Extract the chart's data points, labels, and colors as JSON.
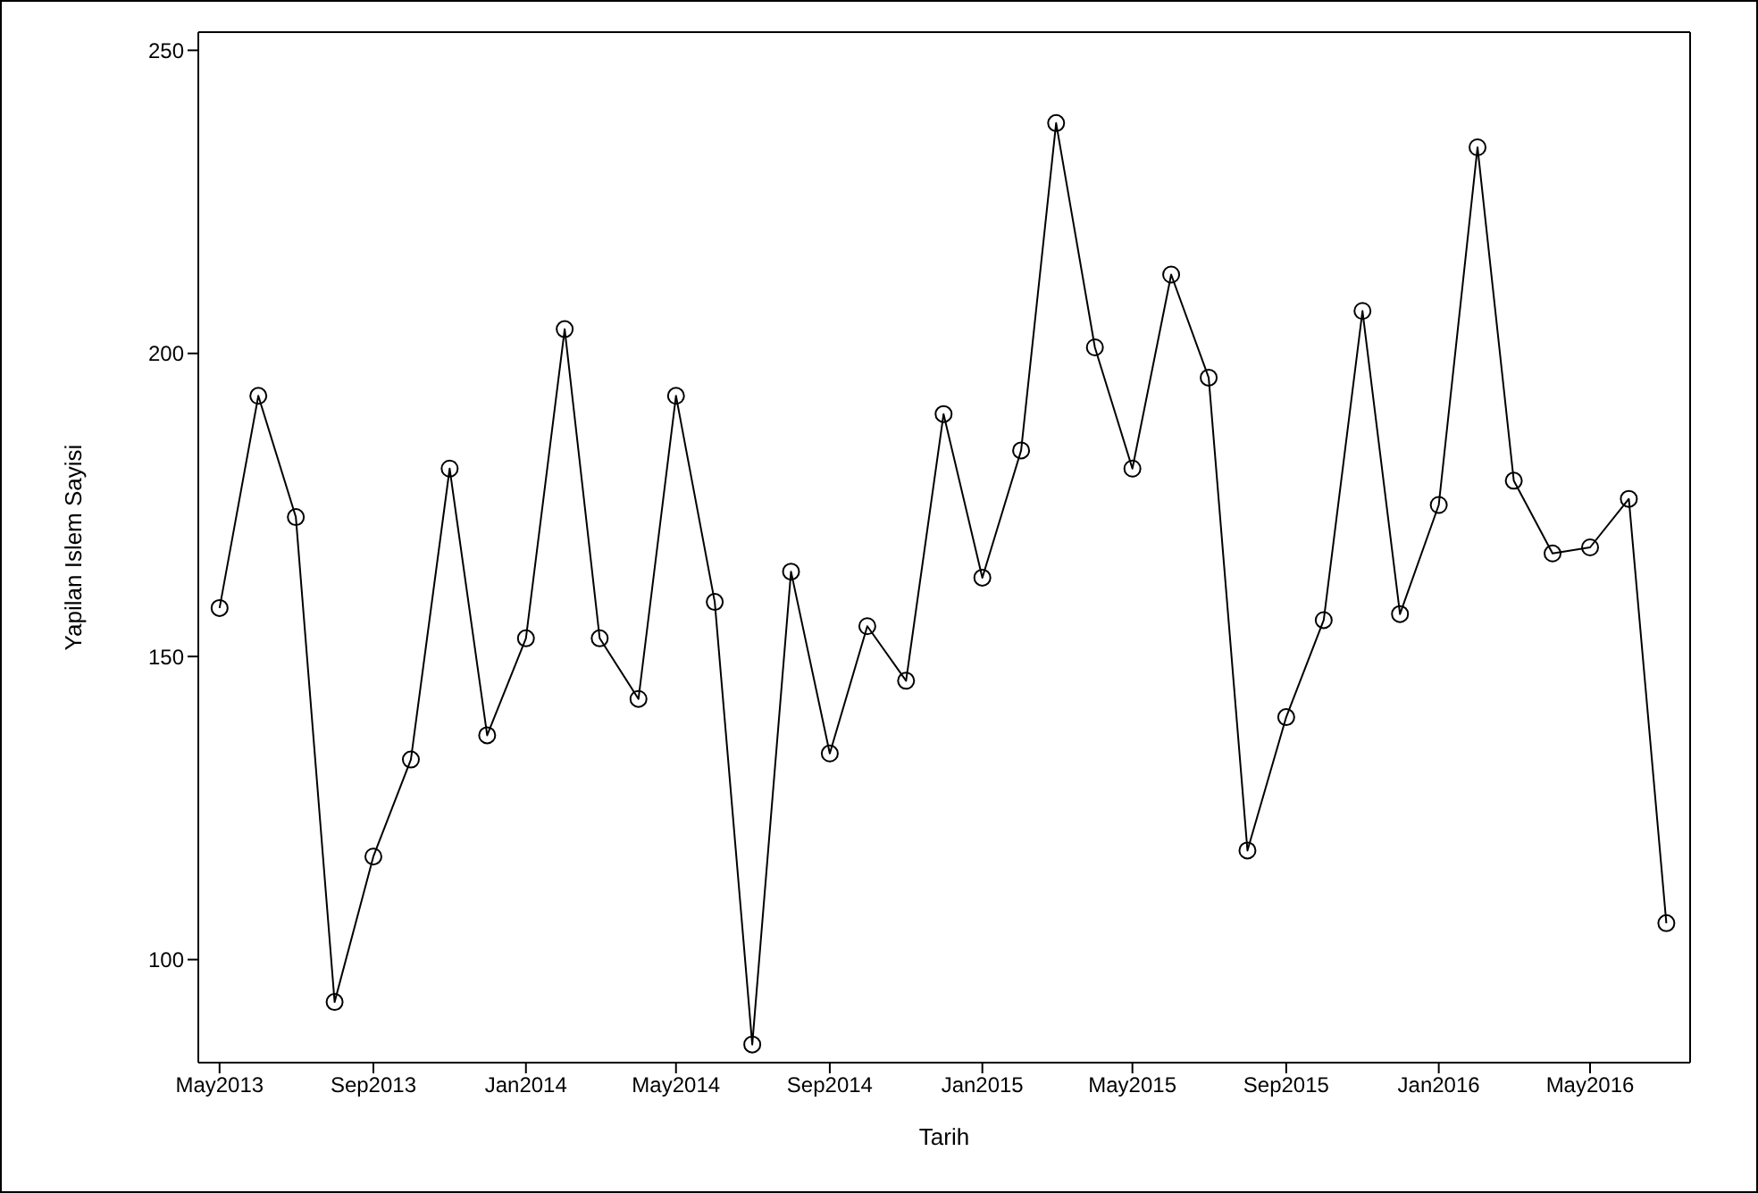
{
  "chart_data": {
    "type": "line",
    "xlabel": "Tarih",
    "ylabel": "Yapilan Islem Sayisi",
    "marker": "circle",
    "line_style": "solid",
    "grid": false,
    "legend": false,
    "x": [
      "2013-05",
      "2013-06",
      "2013-07",
      "2013-08",
      "2013-09",
      "2013-10",
      "2013-11",
      "2013-12",
      "2014-01",
      "2014-02",
      "2014-03",
      "2014-04",
      "2014-05",
      "2014-06",
      "2014-07",
      "2014-08",
      "2014-09",
      "2014-10",
      "2014-11",
      "2014-12",
      "2015-01",
      "2015-02",
      "2015-03",
      "2015-04",
      "2015-05",
      "2015-06",
      "2015-07",
      "2015-08",
      "2015-09",
      "2015-10",
      "2015-11",
      "2015-12",
      "2016-01",
      "2016-02",
      "2016-03",
      "2016-04",
      "2016-05",
      "2016-06",
      "2016-07"
    ],
    "series": [
      {
        "color": "#000000",
        "values": [
          158,
          193,
          173,
          93,
          117,
          133,
          181,
          137,
          153,
          204,
          153,
          143,
          193,
          159,
          86,
          164,
          134,
          155,
          146,
          190,
          163,
          184,
          238,
          201,
          181,
          213,
          196,
          118,
          140,
          156,
          207,
          157,
          175,
          234,
          179,
          167,
          168,
          176,
          106
        ]
      }
    ],
    "xlim": [
      "2013-04-14",
      "2016-07-20"
    ],
    "xticks": [
      {
        "value": "2013-05",
        "label": "May2013"
      },
      {
        "value": "2013-09",
        "label": "Sep2013"
      },
      {
        "value": "2014-01",
        "label": "Jan2014"
      },
      {
        "value": "2014-05",
        "label": "May2014"
      },
      {
        "value": "2014-09",
        "label": "Sep2014"
      },
      {
        "value": "2015-01",
        "label": "Jan2015"
      },
      {
        "value": "2015-05",
        "label": "May2015"
      },
      {
        "value": "2015-09",
        "label": "Sep2015"
      },
      {
        "value": "2016-01",
        "label": "Jan2016"
      },
      {
        "value": "2016-05",
        "label": "May2016"
      }
    ],
    "ylim": [
      83,
      253
    ],
    "yticks": [
      100,
      150,
      200,
      250
    ]
  }
}
